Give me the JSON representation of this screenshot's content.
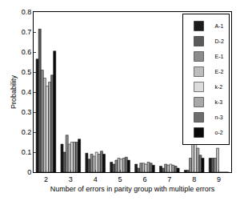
{
  "chart_data": {
    "type": "bar",
    "x_label": "Number of errors in parity group with multiple errors",
    "y_label": "Probability",
    "categories": [
      "2",
      "3",
      "4",
      "5",
      "6",
      "7",
      "8",
      "9"
    ],
    "series": [
      {
        "name": "A-1",
        "color": "#1c1c1c",
        "values": [
          0.565,
          0.14,
          0.095,
          0.05,
          0.04,
          0.03,
          0.01,
          0.07
        ]
      },
      {
        "name": "D-2",
        "color": "#5a5a5a",
        "values": [
          0.715,
          0.1,
          0.065,
          0.04,
          0.02,
          0.02,
          0.01,
          0.07
        ]
      },
      {
        "name": "E-1",
        "color": "#8c8c8c",
        "values": [
          0.51,
          0.185,
          0.09,
          0.06,
          0.045,
          0.04,
          0.07,
          0.07
        ]
      },
      {
        "name": "E-2",
        "color": "#bdbdbd",
        "values": [
          0.47,
          0.14,
          0.08,
          0.07,
          0.045,
          0.035,
          0.175,
          0.12
        ]
      },
      {
        "name": "k-2",
        "color": "#dcdcdc",
        "values": [
          0.43,
          0.15,
          0.1,
          0.065,
          0.04,
          0.04,
          0.15,
          0
        ]
      },
      {
        "name": "k-3",
        "color": "#a8a8a8",
        "values": [
          0.45,
          0.15,
          0.09,
          0.07,
          0.05,
          0.035,
          0.12,
          0
        ]
      },
      {
        "name": "n-3",
        "color": "#6e6e6e",
        "values": [
          0.485,
          0.15,
          0.105,
          0.075,
          0.045,
          0.03,
          0.085,
          0
        ]
      },
      {
        "name": "o-2",
        "color": "#0a0a0a",
        "values": [
          0.605,
          0.165,
          0.09,
          0.06,
          0.035,
          0.02,
          0.07,
          0
        ]
      }
    ],
    "ylim": [
      0,
      0.8
    ],
    "yticks": [
      0,
      0.1,
      0.2,
      0.3,
      0.4,
      0.5,
      0.6,
      0.7,
      0.8
    ],
    "legend": "top-right",
    "grid": false
  }
}
